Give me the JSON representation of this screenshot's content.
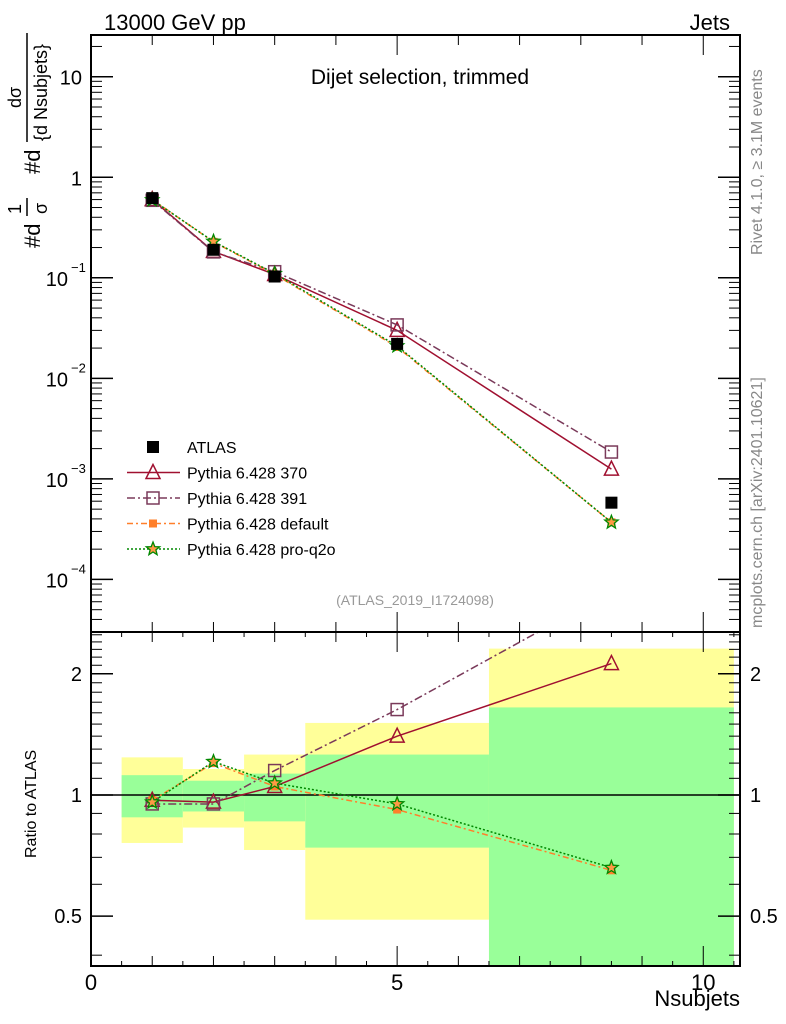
{
  "header": {
    "left": "13000 GeV pp",
    "right": "Jets"
  },
  "side_labels": {
    "rivet": "Rivet 4.1.0, ≥ 3.1M events",
    "mcplots": "mcplots.cern.ch [arXiv:2401.10621]"
  },
  "chart_data": [
    {
      "type": "line",
      "title": "Dijet selection, trimmed",
      "watermark": "(ATLAS_2019_I1724098)",
      "ylabel_parts": {
        "prefix": "#d",
        "frac1_num": "1",
        "frac1_den": "σ",
        "mid": "#d",
        "frac2_num": "dσ",
        "frac2_den": "{d Nsubjets}"
      },
      "yscale": "log",
      "ylim": [
        3e-05,
        26
      ],
      "xlim": [
        0,
        10.6
      ],
      "yticks": [
        {
          "v": 10,
          "label": "10"
        },
        {
          "v": 1,
          "label": "1"
        },
        {
          "v": 0.1,
          "label": "10",
          "exp": "−1"
        },
        {
          "v": 0.01,
          "label": "10",
          "exp": "−2"
        },
        {
          "v": 0.001,
          "label": "10",
          "exp": "−3"
        },
        {
          "v": 0.0001,
          "label": "10",
          "exp": "−4"
        }
      ],
      "x": [
        1,
        2,
        3,
        5,
        8.5
      ],
      "legend_position": "lower-left",
      "series": [
        {
          "name": "ATLAS",
          "color": "#000000",
          "marker": "square-filled",
          "values": [
            0.62,
            0.19,
            0.103,
            0.022,
            0.00058
          ]
        },
        {
          "name": "Pythia 6.428 370",
          "color": "#a01030",
          "marker": "triangle-open",
          "dash": "",
          "values": [
            0.6,
            0.183,
            0.108,
            0.03,
            0.00125
          ]
        },
        {
          "name": "Pythia 6.428 391",
          "color": "#7a3a5a",
          "marker": "square-open",
          "dash": "8,3,2,3",
          "values": [
            0.59,
            0.181,
            0.115,
            0.034,
            0.00185
          ]
        },
        {
          "name": "Pythia 6.428 default",
          "color": "#ff7f2a",
          "marker": "square-small-filled",
          "dash": "6,3,2,3",
          "values": [
            0.6,
            0.228,
            0.108,
            0.0205,
            0.00037
          ]
        },
        {
          "name": "Pythia 6.428 pro-q2o",
          "color": "#008800",
          "marker": "star",
          "dash": "2,2",
          "values": [
            0.595,
            0.23,
            0.11,
            0.021,
            0.00037
          ]
        }
      ]
    },
    {
      "type": "line",
      "ylabel": "Ratio to ATLAS",
      "xlabel": "Nsubjets",
      "yscale": "log",
      "ylim": [
        0.376,
        2.54
      ],
      "xlim": [
        0,
        10.6
      ],
      "yticks": [
        {
          "v": 2,
          "label": "2"
        },
        {
          "v": 1,
          "label": "1"
        },
        {
          "v": 0.5,
          "label": "0.5"
        }
      ],
      "xticks": [
        {
          "v": 0,
          "label": "0"
        },
        {
          "v": 5,
          "label": "5"
        },
        {
          "v": 10,
          "label": "10"
        }
      ],
      "bands": [
        {
          "lo": 0.5,
          "hi": 1.5,
          "yellow": [
            0.76,
            1.24
          ],
          "green": [
            0.88,
            1.12
          ]
        },
        {
          "lo": 1.5,
          "hi": 2.5,
          "yellow": [
            0.83,
            1.16
          ],
          "green": [
            0.91,
            1.085
          ]
        },
        {
          "lo": 2.5,
          "hi": 3.5,
          "yellow": [
            0.73,
            1.26
          ],
          "green": [
            0.86,
            1.13
          ]
        },
        {
          "lo": 3.5,
          "hi": 6.5,
          "yellow": [
            0.49,
            1.51
          ],
          "green": [
            0.74,
            1.26
          ]
        },
        {
          "lo": 6.5,
          "hi": 10.5,
          "yellow": [
            0.3,
            2.31
          ],
          "green": [
            0.3,
            1.65
          ]
        }
      ],
      "band_colors": {
        "yellow": "#ffff99",
        "green": "#99ff99"
      },
      "x": [
        1,
        2,
        3,
        5,
        8.5
      ],
      "series": [
        {
          "name": "Pythia 6.428 370",
          "values": [
            0.97,
            0.96,
            1.05,
            1.4,
            2.12
          ]
        },
        {
          "name": "Pythia 6.428 391",
          "values": [
            0.95,
            0.95,
            1.15,
            1.63,
            3.2
          ]
        },
        {
          "name": "Pythia 6.428 default",
          "values": [
            0.97,
            1.2,
            1.05,
            0.92,
            0.65
          ]
        },
        {
          "name": "Pythia 6.428 pro-q2o",
          "values": [
            0.96,
            1.21,
            1.07,
            0.95,
            0.66
          ]
        }
      ]
    }
  ]
}
